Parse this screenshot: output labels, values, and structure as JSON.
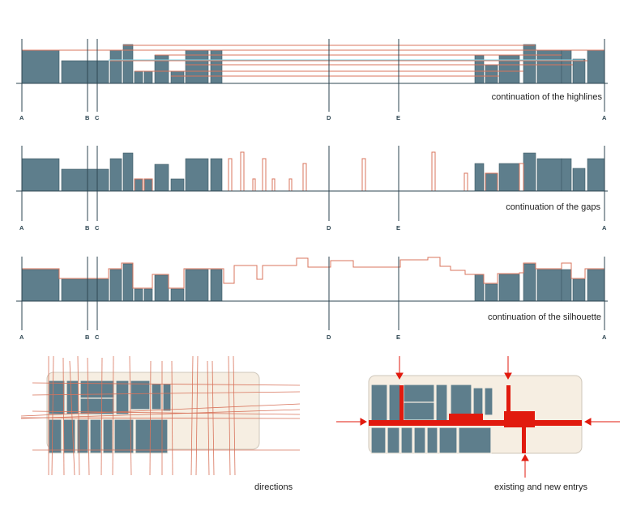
{
  "colors": {
    "building": "#5e7e8c",
    "building_edge": "#3f5a66",
    "line": "#d8745c",
    "line_strong": "#e11a0e",
    "block_bg": "#f6eee2",
    "block_edge": "#cfc7bb",
    "axis": "#2e4652",
    "highlight": "#7fd4e6"
  },
  "axis_labels": [
    "A",
    "B",
    "C",
    "D",
    "E",
    "A"
  ],
  "panels": {
    "highlines": {
      "caption": "continuation of the highlines"
    },
    "gaps": {
      "caption": "continuation of the gaps"
    },
    "silhouette": {
      "caption": "continuation of the silhouette"
    },
    "directions": {
      "caption": "directions"
    },
    "entrys": {
      "caption": "existing and new entrys"
    }
  }
}
